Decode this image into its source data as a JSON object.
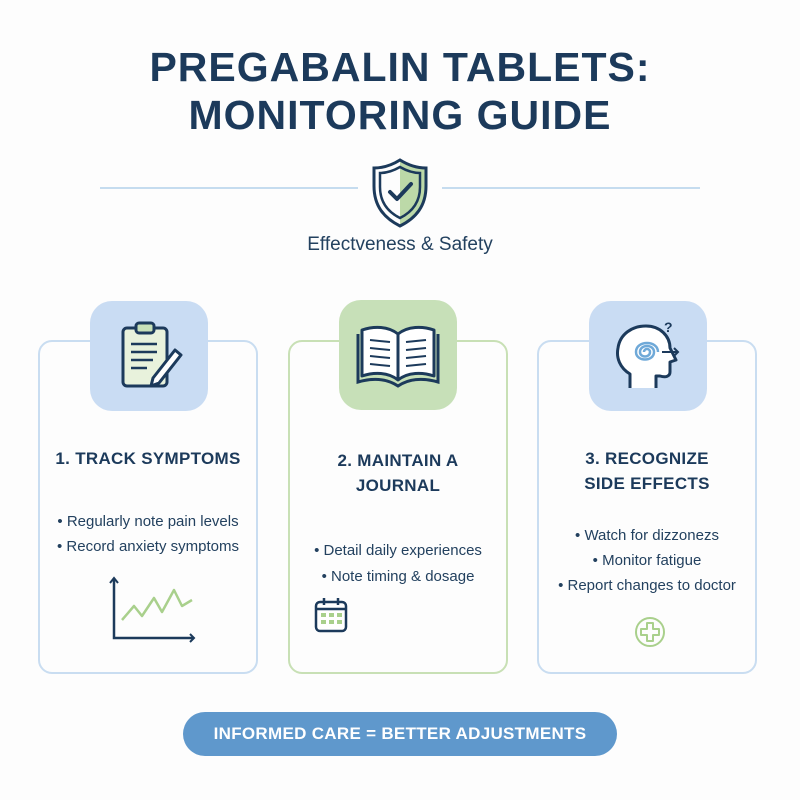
{
  "title": {
    "line1": "PREGABALIN TABLETS:",
    "line2": "MONITORING GUIDE"
  },
  "subtitle": "Effectveness & Safety",
  "cards": [
    {
      "heading": [
        "1. TRACK SYMPTOMS"
      ],
      "bullets": [
        "• Regularly note pain levels",
        "• Record anxiety symptoms"
      ],
      "icon": "clipboard-pencil-icon",
      "small_icon": "line-chart-icon"
    },
    {
      "heading": [
        "2. MAINTAIN A",
        "JOURNAL"
      ],
      "bullets": [
        "• Detail daily experiences",
        "• Note timing & dosage"
      ],
      "icon": "open-book-icon",
      "small_icon": "calendar-icon"
    },
    {
      "heading": [
        "3. RECOGNIZE",
        "SIDE EFFECTS"
      ],
      "bullets": [
        "• Watch for dizzonezs",
        "• Monitor fatigue",
        "• Report changes to doctor"
      ],
      "icon": "head-dizzy-icon",
      "small_icon": "medical-cross-icon"
    }
  ],
  "banner": "INFORMED CARE = BETTER ADJUSTMENTS",
  "colors": {
    "navy": "#1c3a5b",
    "blue": "#5f98cc",
    "light_blue": "#c9dcf3",
    "light_green": "#c7e0b8"
  }
}
